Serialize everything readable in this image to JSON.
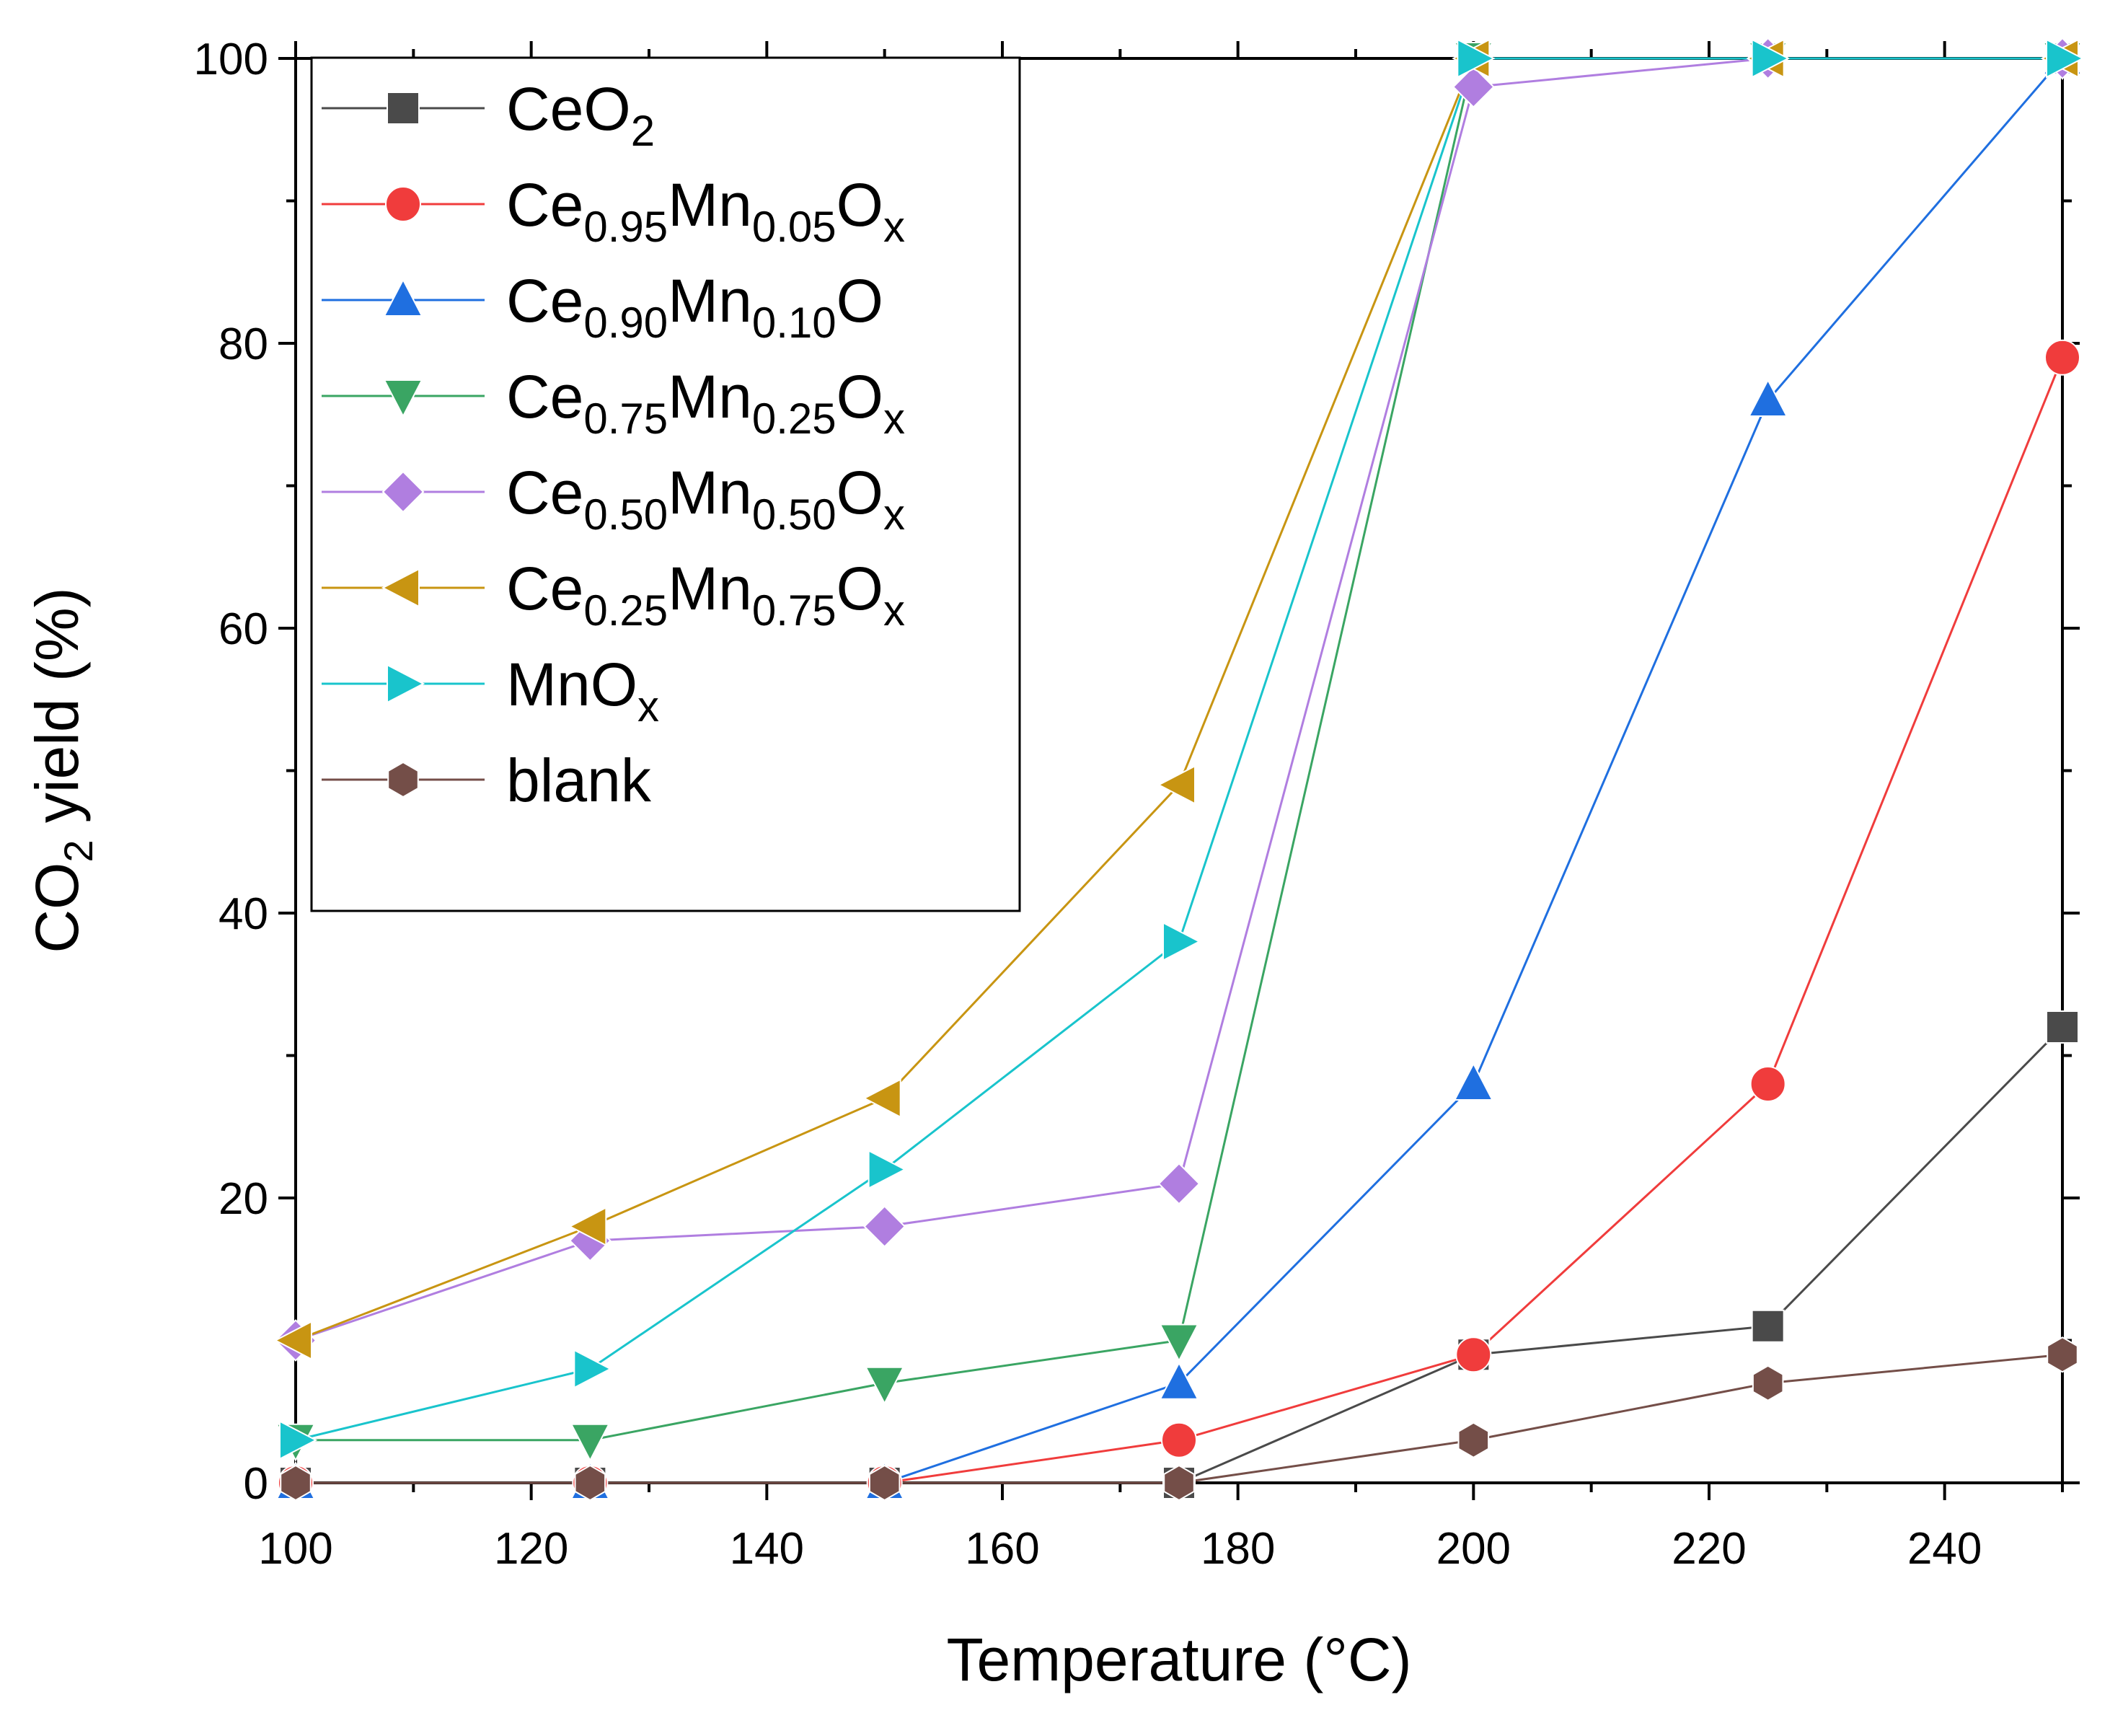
{
  "chart_data": {
    "type": "line",
    "title": "",
    "xlabel": "Temperature (°C)",
    "ylabel": {
      "main": "CO",
      "sub": "2",
      "rest": " yield (%)"
    },
    "xlim": [
      100,
      250
    ],
    "ylim": [
      0,
      100
    ],
    "xticks": [
      100,
      120,
      140,
      160,
      180,
      200,
      220,
      240
    ],
    "yticks": [
      0,
      20,
      40,
      60,
      80,
      100
    ],
    "legend_position": "top-left",
    "x": [
      100,
      125,
      150,
      175,
      200,
      225,
      250
    ],
    "series": [
      {
        "name": "CeO2",
        "label_parts": [
          [
            "Ce",
            ""
          ],
          [
            "O",
            ""
          ],
          [
            "2",
            "sub"
          ]
        ],
        "color": "#4a4a4a",
        "marker": "square",
        "values": [
          0,
          0,
          0,
          0,
          9,
          11,
          32
        ]
      },
      {
        "name": "Ce0.95Mn0.05Ox",
        "label_parts": [
          [
            "Ce",
            ""
          ],
          [
            "0.95",
            "sub"
          ],
          [
            "Mn",
            ""
          ],
          [
            "0.05",
            "sub"
          ],
          [
            "O",
            ""
          ],
          [
            "x",
            "sub"
          ]
        ],
        "color": "#f03c3c",
        "marker": "circle",
        "values": [
          0,
          0,
          0,
          3,
          9,
          28,
          79
        ]
      },
      {
        "name": "Ce0.90Mn0.10O",
        "label_parts": [
          [
            "Ce",
            ""
          ],
          [
            "0.90",
            "sub"
          ],
          [
            "Mn",
            ""
          ],
          [
            "0.10",
            "sub"
          ],
          [
            "O",
            ""
          ]
        ],
        "color": "#1f6fe0",
        "marker": "triangle-up",
        "values": [
          0,
          0,
          0,
          7,
          28,
          76,
          100
        ]
      },
      {
        "name": "Ce0.75Mn0.25Ox",
        "label_parts": [
          [
            "Ce",
            ""
          ],
          [
            "0.75",
            "sub"
          ],
          [
            "Mn",
            ""
          ],
          [
            "0.25",
            "sub"
          ],
          [
            "O",
            ""
          ],
          [
            "x",
            "sub"
          ]
        ],
        "color": "#3aa563",
        "marker": "triangle-down",
        "values": [
          3,
          3,
          7,
          10,
          100,
          100,
          100
        ]
      },
      {
        "name": "Ce0.50Mn0.50Ox",
        "label_parts": [
          [
            "Ce",
            ""
          ],
          [
            "0.50",
            "sub"
          ],
          [
            "Mn",
            ""
          ],
          [
            "0.50",
            "sub"
          ],
          [
            "O",
            ""
          ],
          [
            "x",
            "sub"
          ]
        ],
        "color": "#b07ee0",
        "marker": "diamond",
        "values": [
          10,
          17,
          18,
          21,
          98,
          100,
          100
        ]
      },
      {
        "name": "Ce0.25Mn0.75Ox",
        "label_parts": [
          [
            "Ce",
            ""
          ],
          [
            "0.25",
            "sub"
          ],
          [
            "Mn",
            ""
          ],
          [
            "0.75",
            "sub"
          ],
          [
            "O",
            ""
          ],
          [
            "x",
            "sub"
          ]
        ],
        "color": "#c89512",
        "marker": "triangle-left",
        "values": [
          10,
          18,
          27,
          49,
          100,
          100,
          100
        ]
      },
      {
        "name": "MnOx",
        "label_parts": [
          [
            "MnO",
            ""
          ],
          [
            "x",
            "sub"
          ]
        ],
        "color": "#19c4cc",
        "marker": "triangle-right",
        "values": [
          3,
          8,
          22,
          38,
          100,
          100,
          100
        ]
      },
      {
        "name": "blank",
        "label_parts": [
          [
            "blank",
            ""
          ]
        ],
        "color": "#744e48",
        "marker": "hexagon",
        "values": [
          0,
          0,
          0,
          0,
          3,
          7,
          9
        ]
      }
    ]
  }
}
